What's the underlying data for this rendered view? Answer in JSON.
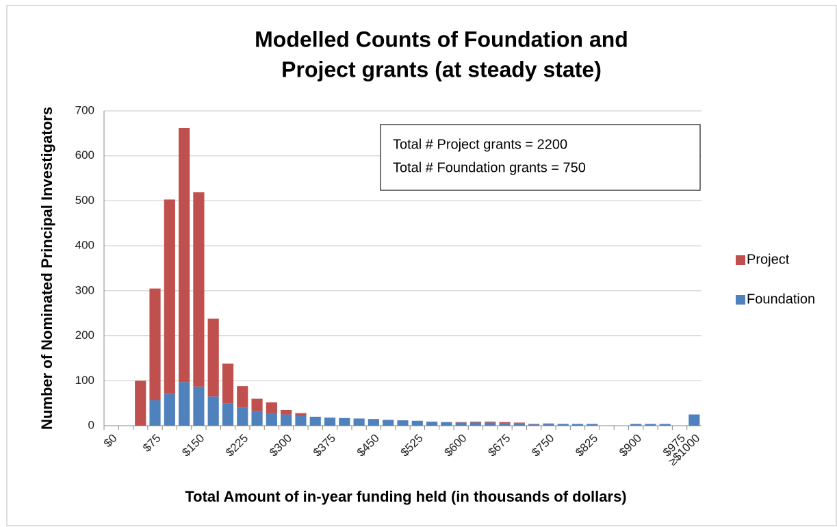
{
  "chart_data": {
    "type": "stacked_bar",
    "title": "Modelled Counts of Foundation and Project grants (at steady state)",
    "x_label": "Total Amount of in-year funding held (in thousands of dollars)",
    "y_label": "Number of Nominated Principal Investigators",
    "annotations": [
      "Total # Project grants = 2200",
      "Total # Foundation grants = 750"
    ],
    "categories": [
      "$0",
      null,
      null,
      "$75",
      null,
      null,
      "$150",
      null,
      null,
      "$225",
      null,
      null,
      "$300",
      null,
      null,
      "$375",
      null,
      null,
      "$450",
      null,
      null,
      "$525",
      null,
      null,
      "$600",
      null,
      null,
      "$675",
      null,
      null,
      "$750",
      null,
      null,
      "$825",
      null,
      null,
      "$900",
      null,
      null,
      "$975",
      "≥$1000"
    ],
    "series": [
      {
        "name": "Foundation",
        "color": "#4f81bd",
        "values": [
          0,
          0,
          0,
          57,
          72,
          97,
          87,
          65,
          50,
          40,
          33,
          28,
          25,
          22,
          20,
          18,
          17,
          16,
          15,
          13,
          12,
          11,
          9,
          8,
          7,
          7,
          7,
          6,
          5,
          3,
          4,
          4,
          4,
          4,
          0,
          0,
          4,
          4,
          4,
          0,
          25
        ]
      },
      {
        "name": "Project",
        "color": "#c0504d",
        "values": [
          0,
          0,
          100,
          248,
          431,
          565,
          432,
          173,
          88,
          48,
          27,
          24,
          10,
          6,
          0,
          0,
          0,
          0,
          0,
          0,
          0,
          0,
          0,
          0,
          1,
          2,
          2,
          2,
          2,
          1,
          1,
          0,
          0,
          0,
          0,
          0,
          0,
          0,
          0,
          0,
          0
        ]
      }
    ],
    "ylim": [
      0,
      700
    ],
    "yticks": [
      0,
      100,
      200,
      300,
      400,
      500,
      600,
      700
    ],
    "grid": true,
    "legend": "right"
  }
}
